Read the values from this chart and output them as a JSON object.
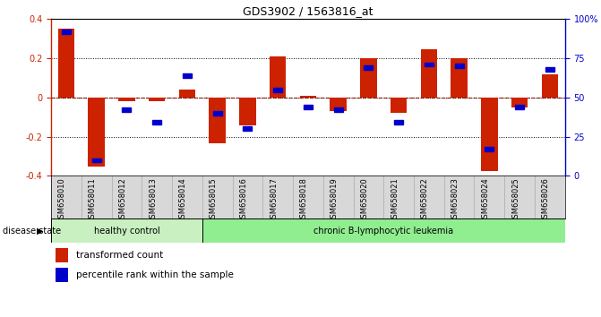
{
  "title": "GDS3902 / 1563816_at",
  "samples": [
    "GSM658010",
    "GSM658011",
    "GSM658012",
    "GSM658013",
    "GSM658014",
    "GSM658015",
    "GSM658016",
    "GSM658017",
    "GSM658018",
    "GSM658019",
    "GSM658020",
    "GSM658021",
    "GSM658022",
    "GSM658023",
    "GSM658024",
    "GSM658025",
    "GSM658026"
  ],
  "red_bars": [
    0.35,
    -0.35,
    -0.02,
    -0.02,
    0.04,
    -0.235,
    -0.14,
    0.21,
    0.01,
    -0.07,
    0.2,
    -0.08,
    0.245,
    0.2,
    -0.375,
    -0.05,
    0.12
  ],
  "blue_pct": [
    92,
    10,
    42,
    34,
    64,
    40,
    30,
    55,
    44,
    42,
    69,
    34,
    71,
    70,
    17,
    44,
    68
  ],
  "healthy_control_count": 5,
  "ylim": [
    -0.4,
    0.4
  ],
  "y2_ticks": [
    0,
    25,
    50,
    75,
    100
  ],
  "y2_labels": [
    "0",
    "25",
    "50",
    "75",
    "100%"
  ],
  "yticks": [
    -0.4,
    -0.2,
    0.0,
    0.2,
    0.4
  ],
  "dotted_lines": [
    -0.2,
    0.0,
    0.2
  ],
  "red_bar_color": "#cc2200",
  "blue_sq_color": "#0000cc",
  "bar_width": 0.55,
  "legend_red": "transformed count",
  "legend_blue": "percentile rank within the sample",
  "disease_state_label": "disease state",
  "healthy_label": "healthy control",
  "leukemia_label": "chronic B-lymphocytic leukemia",
  "healthy_bg": "#c8f0c0",
  "leukemia_bg": "#90ee90",
  "sample_box_bg": "#d8d8d8",
  "sample_box_border": "#aaaaaa"
}
